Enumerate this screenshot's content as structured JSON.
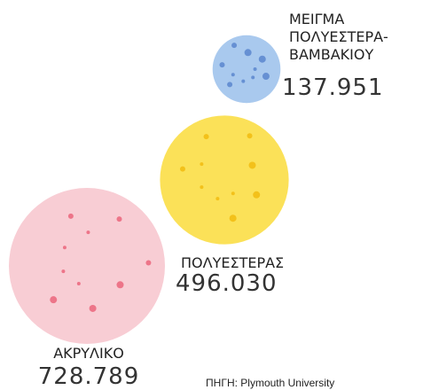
{
  "chart_data": {
    "type": "bubble",
    "categories": [
      "ΜΕΙΓΜΑ ΠΟΛΥΕΣΤΕΡΑ-ΒΑΜΒΑΚΙΟΥ",
      "ΠΟΛΥΕΣΤΕΡΑΣ",
      "ΑΚΡΥΛΙΚΟ"
    ],
    "values": [
      137951,
      496030,
      728789
    ],
    "value_labels": [
      "137.951",
      "496.030",
      "728.789"
    ],
    "colors": [
      "#a9c9ee",
      "#fbe158",
      "#f8cdd4"
    ],
    "source": "ΠΗΓΗ: Plymouth University"
  }
}
